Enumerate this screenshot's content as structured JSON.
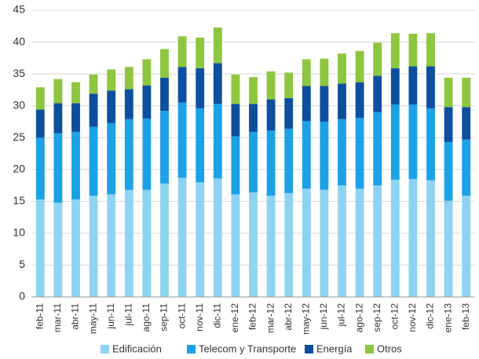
{
  "chart_data": {
    "type": "stacked_bar",
    "categories": [
      "feb-11",
      "mar-11",
      "abr-11",
      "may-11",
      "jun-11",
      "jul-11",
      "ago-11",
      "sep-11",
      "oct-11",
      "nov-11",
      "dic-11",
      "ene-12",
      "feb-12",
      "mar-12",
      "abr-12",
      "may-12",
      "jun-12",
      "jul-12",
      "ago-12",
      "sep-12",
      "oct-12",
      "nov-12",
      "dic-12",
      "ene-13",
      "feb-13"
    ],
    "series": [
      {
        "name": "Edificación",
        "color": "#8fd3f2",
        "values": [
          15.3,
          14.8,
          15.3,
          15.9,
          16.1,
          16.8,
          16.8,
          17.8,
          18.7,
          18.0,
          18.6,
          16.1,
          16.4,
          15.9,
          16.3,
          17.0,
          16.8,
          17.5,
          17.0,
          17.5,
          18.4,
          18.5,
          18.3,
          15.1,
          15.9
        ]
      },
      {
        "name": "Telecom y Transporte",
        "color": "#1ba1e6",
        "values": [
          9.7,
          10.9,
          10.6,
          10.8,
          11.2,
          11.1,
          11.2,
          11.4,
          11.8,
          11.6,
          11.7,
          9.1,
          9.5,
          10.2,
          10.1,
          10.6,
          10.7,
          10.4,
          11.1,
          11.5,
          11.8,
          11.7,
          11.3,
          9.2,
          8.8
        ]
      },
      {
        "name": "Energía",
        "color": "#0d4f9e",
        "values": [
          4.4,
          4.7,
          4.5,
          5.2,
          5.1,
          4.7,
          5.2,
          5.2,
          5.6,
          6.3,
          6.4,
          5.1,
          4.4,
          4.9,
          4.8,
          5.5,
          5.6,
          5.6,
          5.6,
          5.7,
          5.7,
          6.0,
          6.6,
          5.5,
          5.1
        ]
      },
      {
        "name": "Otros",
        "color": "#8dc63f",
        "values": [
          3.5,
          3.8,
          3.3,
          3.0,
          3.3,
          3.5,
          4.1,
          4.5,
          4.8,
          4.8,
          5.6,
          4.6,
          4.2,
          4.4,
          4.0,
          4.2,
          4.3,
          4.7,
          4.9,
          5.2,
          5.5,
          5.1,
          5.2,
          4.6,
          4.6
        ]
      }
    ],
    "ylim": [
      0,
      45
    ],
    "yticks": [
      0,
      5,
      10,
      15,
      20,
      25,
      30,
      35,
      40,
      45
    ],
    "grid": true
  }
}
